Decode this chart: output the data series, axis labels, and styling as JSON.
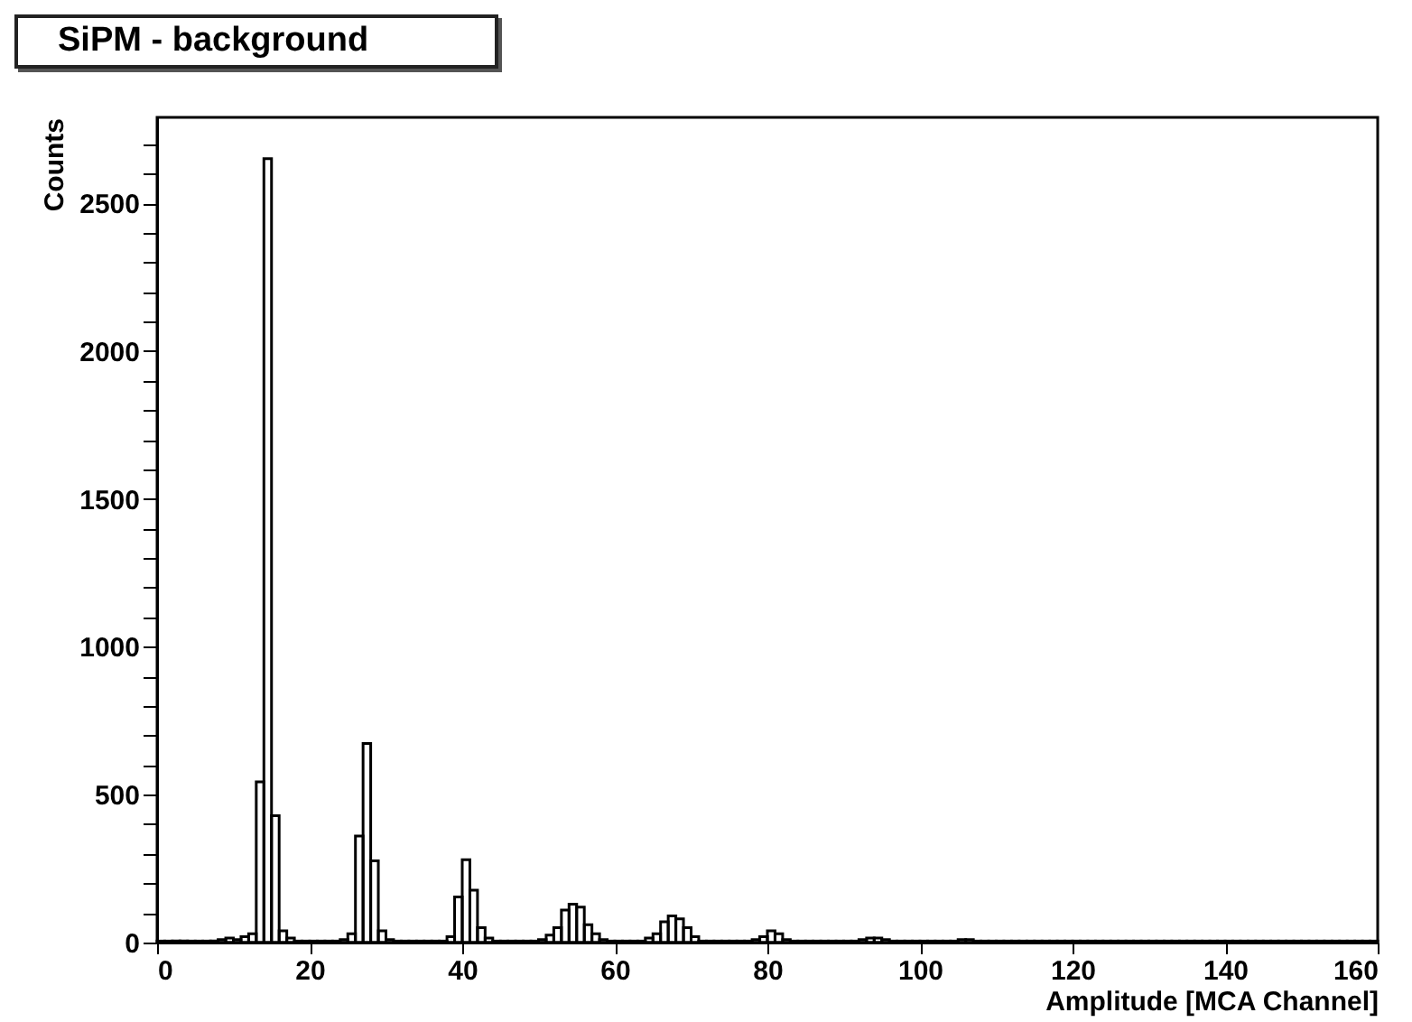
{
  "chart_data": {
    "type": "histogram",
    "title": "SiPM - background",
    "xlabel": "Amplitude [MCA Channel]",
    "ylabel": "Counts",
    "color": "#000000",
    "bins": [
      0,
      1,
      2,
      3,
      4,
      5,
      6,
      7,
      8,
      9,
      10,
      11,
      12,
      13,
      14,
      15,
      16,
      17,
      18,
      19,
      20,
      21,
      22,
      23,
      24,
      25,
      26,
      27,
      28,
      29,
      30,
      31,
      32,
      33,
      34,
      35,
      36,
      37,
      38,
      39,
      40,
      41,
      42,
      43,
      44,
      45,
      46,
      47,
      48,
      49,
      50,
      51,
      52,
      53,
      54,
      55,
      56,
      57,
      58,
      59,
      60,
      61,
      62,
      63,
      64,
      65,
      66,
      67,
      68,
      69,
      70,
      71,
      72,
      73,
      74,
      75,
      76,
      77,
      78,
      79,
      80,
      81,
      82,
      83,
      84,
      85,
      86,
      87,
      88,
      89,
      90,
      91,
      92,
      93,
      94,
      95,
      96,
      97,
      98,
      99,
      100,
      101,
      102,
      103,
      104,
      105,
      106,
      107,
      108,
      109,
      110,
      111,
      112,
      113,
      114,
      115,
      116,
      117,
      118,
      119,
      120,
      121,
      122,
      123,
      124,
      125,
      126,
      127,
      128,
      129,
      130,
      131,
      132,
      133,
      134,
      135,
      136,
      137,
      138,
      139,
      140,
      141,
      142,
      143,
      144,
      145,
      146,
      147,
      148,
      149,
      150,
      151,
      152,
      153,
      154,
      155,
      156,
      157,
      158,
      159,
      160
    ],
    "values": [
      5,
      5,
      5,
      5,
      5,
      5,
      5,
      5,
      10,
      15,
      10,
      20,
      30,
      543,
      2650,
      429,
      40,
      15,
      5,
      5,
      5,
      5,
      5,
      5,
      10,
      30,
      360,
      673,
      276,
      40,
      10,
      5,
      5,
      5,
      5,
      5,
      5,
      5,
      20,
      154,
      280,
      177,
      50,
      15,
      5,
      5,
      5,
      5,
      5,
      5,
      10,
      25,
      50,
      110,
      130,
      120,
      60,
      30,
      10,
      5,
      5,
      5,
      5,
      5,
      15,
      30,
      70,
      90,
      80,
      50,
      20,
      5,
      5,
      5,
      5,
      5,
      5,
      5,
      10,
      20,
      40,
      30,
      10,
      5,
      5,
      5,
      5,
      5,
      5,
      5,
      5,
      5,
      10,
      15,
      15,
      10,
      5,
      5,
      5,
      5,
      5,
      5,
      5,
      5,
      5,
      10,
      10,
      5,
      5,
      5,
      5,
      5,
      5,
      5,
      5,
      5,
      5,
      5,
      5,
      5,
      5,
      5,
      5,
      5,
      5,
      5,
      5,
      5,
      5,
      5,
      5,
      5,
      5,
      5,
      5,
      5,
      5,
      5,
      5,
      5,
      5,
      5,
      5,
      5,
      5,
      5,
      5,
      5,
      5,
      5,
      5,
      5,
      5,
      5,
      5,
      5,
      5,
      5,
      5,
      5
    ],
    "xlim": [
      0,
      160
    ],
    "xticks": [
      0,
      20,
      40,
      60,
      80,
      100,
      120,
      140,
      160
    ],
    "ylim": [
      0,
      2790
    ],
    "yticks": [
      0,
      {
        "value": 100,
        "label": null
      },
      {
        "value": 200,
        "label": null
      },
      {
        "value": 300,
        "label": null
      },
      {
        "value": 400,
        "label": null
      },
      500,
      {
        "value": 600,
        "label": null
      },
      {
        "value": 700,
        "label": null
      },
      {
        "value": 800,
        "label": null
      },
      {
        "value": 900,
        "label": null
      },
      1000,
      {
        "value": 1100,
        "label": null
      },
      {
        "value": 1200,
        "label": null
      },
      {
        "value": 1300,
        "label": null
      },
      {
        "value": 1400,
        "label": null
      },
      1500,
      {
        "value": 1600,
        "label": null
      },
      {
        "value": 1700,
        "label": null
      },
      {
        "value": 1800,
        "label": null
      },
      {
        "value": 1900,
        "label": null
      },
      2000,
      {
        "value": 2100,
        "label": null
      },
      {
        "value": 2200,
        "label": null
      },
      {
        "value": 2300,
        "label": null
      },
      {
        "value": 2400,
        "label": null
      },
      2500,
      {
        "value": 2600,
        "label": null
      },
      {
        "value": 2700,
        "label": null
      }
    ],
    "grid": false
  }
}
